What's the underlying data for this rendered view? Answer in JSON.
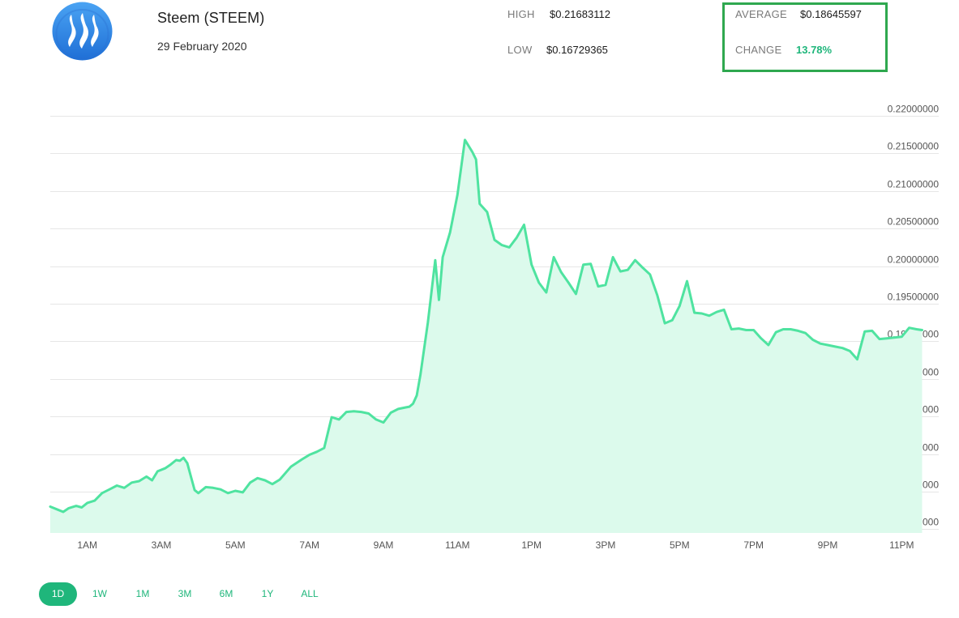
{
  "header": {
    "coin_name": "Steem (STEEM)",
    "date": "29 February 2020",
    "logo_icon": "steem-logo-icon",
    "logo_color": "#2f8ce8"
  },
  "stats": {
    "high_label": "HIGH",
    "high_value": "$0.21683112",
    "low_label": "LOW",
    "low_value": "$0.16729365",
    "average_label": "AVERAGE",
    "average_value": "$0.18645597",
    "change_label": "CHANGE",
    "change_value": "13.78%",
    "change_color": "#1fb67b",
    "highlight_color": "#2fa84f"
  },
  "range_tabs": [
    {
      "label": "1D",
      "active": true
    },
    {
      "label": "1W",
      "active": false
    },
    {
      "label": "1M",
      "active": false
    },
    {
      "label": "3M",
      "active": false
    },
    {
      "label": "6M",
      "active": false
    },
    {
      "label": "1Y",
      "active": false
    },
    {
      "label": "ALL",
      "active": false
    }
  ],
  "chart_data": {
    "type": "area",
    "title": "",
    "xlabel": "",
    "ylabel": "",
    "line_color": "#4fe3a0",
    "fill_color": "#dcfaec",
    "grid": true,
    "legend": "none",
    "ylim": [
      0.1645,
      0.22
    ],
    "xlim": [
      0,
      24
    ],
    "y_ticks": [
      "0.16500000",
      "0.17000000",
      "0.17500000",
      "0.18000000",
      "0.18500000",
      "0.19000000",
      "0.19500000",
      "0.20000000",
      "0.20500000",
      "0.21000000",
      "0.21500000",
      "0.22000000"
    ],
    "y_tick_values": [
      0.165,
      0.17,
      0.175,
      0.18,
      0.185,
      0.19,
      0.195,
      0.2,
      0.205,
      0.21,
      0.215,
      0.22
    ],
    "x_ticks": [
      "1AM",
      "3AM",
      "5AM",
      "7AM",
      "9AM",
      "11AM",
      "1PM",
      "3PM",
      "5PM",
      "7PM",
      "9PM",
      "11PM"
    ],
    "x_tick_values": [
      1,
      3,
      5,
      7,
      9,
      11,
      13,
      15,
      17,
      19,
      21,
      23
    ],
    "series": [
      {
        "x": [
          0.0,
          0.2,
          0.35,
          0.5,
          0.7,
          0.85,
          1.0,
          1.2,
          1.4,
          1.6,
          1.8,
          2.0,
          2.2,
          2.4,
          2.6,
          2.75,
          2.9,
          3.1,
          3.25,
          3.4,
          3.5,
          3.6,
          3.7,
          3.8,
          3.9,
          4.0,
          4.2,
          4.4,
          4.6,
          4.8,
          5.0,
          5.2,
          5.4,
          5.6,
          5.8,
          6.0,
          6.2,
          6.5,
          6.8,
          7.0,
          7.2,
          7.4,
          7.6,
          7.8,
          8.0,
          8.2,
          8.4,
          8.6,
          8.8,
          9.0,
          9.2,
          9.4,
          9.6,
          9.7,
          9.8,
          9.9,
          10.0,
          10.2,
          10.4,
          10.5,
          10.6,
          10.8,
          11.0,
          11.2,
          11.4,
          11.5,
          11.6,
          11.8,
          12.0,
          12.2,
          12.4,
          12.6,
          12.8,
          13.0,
          13.2,
          13.4,
          13.6,
          13.8,
          14.0,
          14.2,
          14.4,
          14.6,
          14.8,
          15.0,
          15.2,
          15.4,
          15.6,
          15.8,
          16.0,
          16.2,
          16.4,
          16.6,
          16.8,
          17.0,
          17.2,
          17.4,
          17.6,
          17.8,
          18.0,
          18.2,
          18.4,
          18.6,
          18.8,
          19.0,
          19.2,
          19.4,
          19.6,
          19.8,
          20.0,
          20.2,
          20.4,
          20.6,
          20.8,
          21.0,
          21.2,
          21.4,
          21.6,
          21.8,
          22.0,
          22.2,
          22.4,
          22.6,
          22.8,
          23.0,
          23.2,
          23.4,
          23.55
        ],
        "values": [
          0.168,
          0.1676,
          0.1673,
          0.1678,
          0.1681,
          0.1679,
          0.1685,
          0.1688,
          0.1698,
          0.1703,
          0.1708,
          0.1705,
          0.1712,
          0.1714,
          0.172,
          0.1715,
          0.1727,
          0.1731,
          0.1736,
          0.1742,
          0.1741,
          0.1745,
          0.1738,
          0.172,
          0.1702,
          0.1698,
          0.1706,
          0.1705,
          0.1703,
          0.1698,
          0.1701,
          0.1699,
          0.1712,
          0.1718,
          0.1715,
          0.171,
          0.1716,
          0.1733,
          0.1743,
          0.1749,
          0.1753,
          0.1758,
          0.1799,
          0.1796,
          0.1806,
          0.1807,
          0.1806,
          0.1804,
          0.1796,
          0.1792,
          0.1805,
          0.181,
          0.1812,
          0.1813,
          0.1817,
          0.1828,
          0.1856,
          0.1925,
          0.2008,
          0.1955,
          0.2012,
          0.2045,
          0.2095,
          0.2168,
          0.2152,
          0.2142,
          0.2083,
          0.2072,
          0.2035,
          0.2028,
          0.2025,
          0.2038,
          0.2055,
          0.2002,
          0.1978,
          0.1965,
          0.2012,
          0.1992,
          0.1978,
          0.1963,
          0.2002,
          0.2003,
          0.1973,
          0.1975,
          0.2012,
          0.1993,
          0.1995,
          0.2008,
          0.1998,
          0.1989,
          0.1961,
          0.1924,
          0.1928,
          0.1947,
          0.198,
          0.1938,
          0.1937,
          0.1934,
          0.1939,
          0.1942,
          0.1916,
          0.1917,
          0.1915,
          0.1915,
          0.1904,
          0.1895,
          0.1912,
          0.1916,
          0.1916,
          0.1914,
          0.1911,
          0.1902,
          0.1897,
          0.1895,
          0.1893,
          0.1891,
          0.1887,
          0.1876,
          0.1913,
          0.1914,
          0.1903,
          0.1904,
          0.1905,
          0.1906,
          0.1918,
          0.1916,
          0.1915
        ]
      }
    ]
  }
}
